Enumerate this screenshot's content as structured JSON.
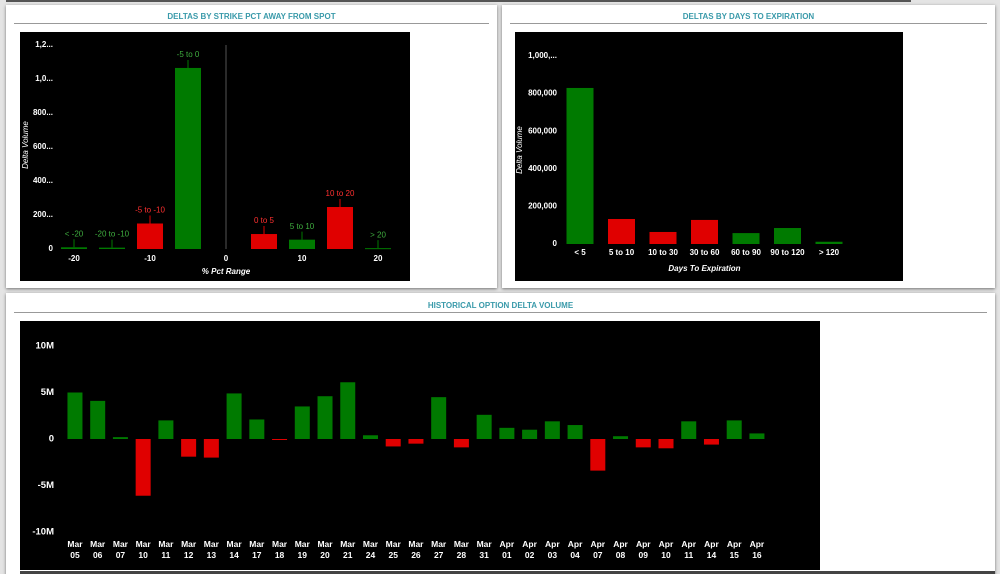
{
  "chart_data": [
    {
      "type": "bar",
      "title": "DELTAS BY STRIKE PCT AWAY FROM SPOT",
      "xlabel": "% Pct Range",
      "ylabel": "Delta Volume",
      "x": [
        -20,
        -15,
        -10,
        -5,
        5,
        10,
        15,
        20
      ],
      "labels": [
        "< -20",
        "-20 to -10",
        "-5 to -10",
        "-5 to 0",
        "0 to 5",
        "5 to 10",
        "10 to 20",
        "> 20"
      ],
      "values": [
        10,
        8,
        150,
        1065,
        88,
        55,
        247,
        5
      ],
      "colors": [
        "#007a00",
        "#007a00",
        "#e00000",
        "#007a00",
        "#e00000",
        "#007a00",
        "#e00000",
        "#007a00"
      ],
      "xlim": [
        -24,
        24
      ],
      "xticks": [
        -20,
        -10,
        0,
        10,
        20
      ],
      "ylim": [
        0,
        1200
      ],
      "yticks": [
        0,
        {
          "value": 200,
          "label": "200..."
        },
        {
          "value": 400,
          "label": "400..."
        },
        {
          "value": 600,
          "label": "600..."
        },
        {
          "value": 800,
          "label": "800..."
        },
        {
          "value": 1000,
          "label": "1,0..."
        },
        {
          "value": 1200,
          "label": "1,2..."
        }
      ]
    },
    {
      "type": "bar",
      "title": "DELTAS BY DAYS TO EXPIRATION",
      "xlabel": "Days To Expiration",
      "ylabel": "Delta Volume",
      "categories": [
        "< 5",
        "5 to 10",
        "10 to 30",
        "30 to 60",
        "60 to 90",
        "90 to 120",
        "> 120"
      ],
      "values": [
        830000,
        133000,
        64000,
        128000,
        58000,
        85000,
        12000
      ],
      "colors": [
        "#007a00",
        "#e00000",
        "#e00000",
        "#e00000",
        "#007a00",
        "#007a00",
        "#007a00"
      ],
      "ylim": [
        0,
        1050000
      ],
      "yticks": [
        0,
        {
          "value": 200000,
          "label": "200,000"
        },
        {
          "value": 400000,
          "label": "400,000"
        },
        {
          "value": 600000,
          "label": "600,000"
        },
        {
          "value": 800000,
          "label": "800,000"
        },
        {
          "value": 1000000,
          "label": "1,000,..."
        }
      ]
    },
    {
      "type": "bar",
      "title": "HISTORICAL OPTION DELTA VOLUME",
      "categories": [
        "Mar 05",
        "Mar 06",
        "Mar 07",
        "Mar 10",
        "Mar 11",
        "Mar 12",
        "Mar 13",
        "Mar 14",
        "Mar 17",
        "Mar 18",
        "Mar 19",
        "Mar 20",
        "Mar 21",
        "Mar 24",
        "Mar 25",
        "Mar 26",
        "Mar 27",
        "Mar 28",
        "Mar 31",
        "Apr 01",
        "Apr 02",
        "Apr 03",
        "Apr 04",
        "Apr 07",
        "Apr 08",
        "Apr 09",
        "Apr 10",
        "Apr 11",
        "Apr 14",
        "Apr 15",
        "Apr 16"
      ],
      "values": [
        5000000,
        4100000,
        200000,
        -6100000,
        2000000,
        -1900000,
        -2000000,
        4900000,
        2100000,
        -100000,
        3500000,
        4600000,
        6100000,
        400000,
        -800000,
        -500000,
        4500000,
        -900000,
        2600000,
        1200000,
        1000000,
        1900000,
        1500000,
        -3400000,
        300000,
        -900000,
        -1000000,
        1900000,
        -600000,
        2000000,
        600000
      ],
      "positive_color": "#007a00",
      "negative_color": "#e00000",
      "ylim": [
        -10000000,
        10000000
      ],
      "yticks": [
        {
          "value": -10000000,
          "label": "-10M"
        },
        {
          "value": -5000000,
          "label": "-5M"
        },
        0,
        {
          "value": 5000000,
          "label": "5M"
        },
        {
          "value": 10000000,
          "label": "10M"
        }
      ]
    }
  ]
}
